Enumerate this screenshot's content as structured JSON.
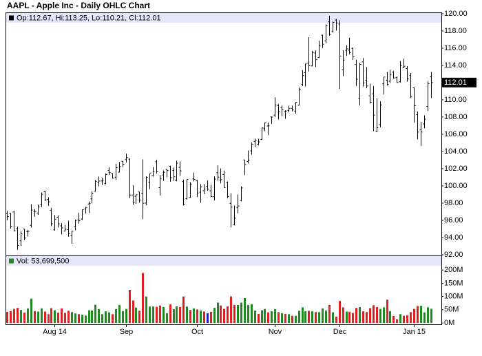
{
  "chart_data": {
    "type": "ohlc",
    "title": "AAPL - Apple Inc - Daily OHLC Chart",
    "legend": "Op:112.67, Hi:113.25, Lo:110.21, Cl:112.01",
    "color": "#000000",
    "categories": [
      null,
      null,
      null,
      null,
      null,
      null,
      null,
      null,
      null,
      null,
      null,
      null,
      null,
      null,
      "Aug 14",
      null,
      null,
      null,
      null,
      null,
      null,
      null,
      null,
      null,
      null,
      null,
      null,
      null,
      null,
      null,
      null,
      null,
      null,
      null,
      null,
      "Sep",
      null,
      null,
      null,
      null,
      null,
      null,
      null,
      null,
      null,
      null,
      null,
      null,
      null,
      null,
      null,
      null,
      null,
      null,
      null,
      null,
      "Oct",
      null,
      null,
      null,
      null,
      null,
      null,
      null,
      null,
      null,
      null,
      null,
      null,
      null,
      null,
      null,
      null,
      null,
      null,
      null,
      null,
      null,
      null,
      "Nov",
      null,
      null,
      null,
      null,
      null,
      null,
      null,
      null,
      null,
      null,
      null,
      null,
      null,
      null,
      null,
      null,
      null,
      null,
      "Dec",
      null,
      null,
      null,
      null,
      null,
      null,
      null,
      null,
      null,
      null,
      null,
      null,
      null,
      null,
      null,
      null,
      null,
      null,
      null,
      null,
      null,
      "Jan 15",
      null,
      null,
      null,
      null,
      null
    ],
    "open": [
      96.8,
      96.8,
      96.97,
      95.03,
      93.62,
      94.99,
      94.68,
      95.42,
      97.04,
      96.85,
      97.82,
      99.33,
      98.44,
      97.16,
      94.9,
      96.37,
      95.36,
      94.75,
      94.93,
      94.26,
      95.27,
      96.04,
      96.15,
      97.33,
      97.9,
      98.49,
      99.41,
      100.44,
      100.57,
      100.29,
      101.79,
      101.42,
      101.02,
      101.59,
      102.86,
      103.06,
      103.1,
      98.85,
      98.8,
      99.3,
      99.08,
      98.01,
      100.41,
      101.21,
      102.81,
      99.8,
      101.27,
      101.93,
      102.29,
      101.8,
      100.6,
      102.16,
      100.51,
      98.53,
      98.65,
      100.81,
      100.59,
      99.27,
      99.44,
      99.95,
      99.43,
      98.76,
      101.54,
      100.69,
      101.33,
      100.39,
      97.97,
      95.55,
      97.5,
      98.32,
      103.02,
      102.84,
      104.08,
      105.18,
      104.85,
      105.4,
      106.65,
      106.96,
      108.01,
      108.22,
      109.36,
      109.1,
      108.6,
      108.75,
      109.02,
      108.7,
      109.38,
      111.8,
      113.15,
      114.27,
      113.94,
      115.44,
      114.91,
      117.51,
      116.85,
      119.07,
      117.94,
      119.27,
      118.81,
      113.5,
      115.75,
      115.77,
      115.99,
      114.1,
      110.19,
      114.41,
      112.26,
      110.46,
      110.7,
      106.37,
      107.12,
      111.87,
      112.26,
      112.16,
      113.23,
      112.58,
      112.1,
      113.79,
      113.64,
      112.82,
      111.39,
      108.29,
      106.54,
      107.2,
      109.23,
      112.67
    ],
    "high": [
      97.1,
      96.85,
      97.1,
      95.28,
      94.74,
      95.0,
      94.89,
      97.88,
      97.32,
      97.84,
      99.24,
      99.44,
      98.7,
      97.45,
      96.62,
      96.58,
      95.68,
      95.48,
      95.95,
      94.82,
      96.08,
      96.88,
      97.24,
      97.57,
      98.19,
      99.37,
      100.68,
      101.09,
      100.94,
      101.47,
      102.17,
      101.5,
      102.57,
      102.78,
      102.9,
      103.74,
      103.2,
      100.09,
      98.97,
      99.31,
      103.08,
      101.11,
      101.44,
      102.19,
      103.05,
      101.26,
      101.8,
      101.94,
      102.35,
      102.14,
      102.94,
      102.85,
      100.71,
      100.75,
      100.44,
      101.54,
      100.69,
      100.22,
      100.21,
      100.65,
      100.12,
      101.11,
      102.38,
      102.03,
      101.78,
      100.52,
      99.15,
      97.72,
      99.0,
      99.96,
      103.02,
      104.11,
      105.05,
      105.49,
      105.48,
      106.74,
      107.37,
      107.35,
      108.04,
      110.3,
      109.49,
      109.3,
      108.79,
      109.32,
      109.33,
      109.75,
      111.43,
      113.45,
      114.19,
      117.28,
      115.69,
      115.74,
      116.86,
      117.57,
      118.77,
      119.75,
      119.1,
      119.4,
      119.25,
      115.75,
      116.35,
      117.2,
      116.08,
      114.65,
      114.3,
      114.85,
      113.8,
      111.87,
      111.6,
      110.16,
      109.84,
      112.65,
      113.24,
      113.49,
      113.33,
      112.71,
      114.52,
      114.77,
      113.92,
      113.13,
      111.44,
      108.65,
      107.43,
      108.2,
      112.15,
      113.25
    ],
    "low": [
      96.0,
      95.03,
      94.74,
      92.57,
      93.02,
      93.72,
      94.12,
      95.17,
      96.42,
      96.64,
      97.55,
      98.25,
      97.67,
      95.33,
      94.81,
      95.17,
      94.36,
      94.71,
      94.1,
      93.28,
      94.84,
      95.61,
      96.04,
      96.8,
      96.86,
      97.98,
      99.32,
      99.95,
      100.11,
      100.19,
      101.28,
      100.86,
      100.7,
      101.56,
      102.2,
      102.72,
      98.58,
      97.79,
      97.91,
      98.05,
      96.14,
      97.76,
      99.62,
      101.08,
      101.44,
      98.89,
      100.59,
      101.0,
      100.5,
      100.58,
      100.54,
      101.2,
      97.72,
      98.4,
      98.63,
      100.53,
      98.7,
      98.04,
      99.04,
      99.42,
      98.73,
      98.31,
      100.61,
      100.3,
      99.81,
      98.57,
      95.18,
      95.41,
      96.81,
      98.22,
      101.27,
      102.6,
      103.63,
      104.53,
      104.7,
      105.35,
      106.36,
      105.9,
      107.21,
      108.01,
      107.72,
      108.12,
      107.8,
      108.55,
      108.67,
      108.4,
      109.37,
      111.6,
      111.56,
      113.3,
      113.89,
      113.8,
      114.85,
      116.03,
      116.62,
      117.45,
      117.83,
      118.05,
      111.27,
      112.75,
      115.11,
      115.29,
      114.64,
      111.62,
      109.35,
      111.54,
      111.34,
      109.58,
      106.35,
      106.26,
      106.82,
      110.66,
      111.66,
      111.97,
      112.46,
      112.01,
      112.01,
      113.7,
      112.11,
      110.21,
      107.35,
      105.41,
      104.63,
      106.7,
      108.7,
      110.21
    ],
    "close": [
      96.45,
      95.32,
      94.78,
      93.09,
      94.43,
      93.94,
      94.72,
      97.19,
      97.03,
      97.67,
      99.02,
      98.38,
      98.15,
      95.6,
      96.13,
      95.59,
      95.12,
      94.96,
      94.48,
      94.74,
      95.99,
      95.97,
      97.24,
      97.5,
      97.98,
      99.16,
      100.53,
      100.57,
      100.58,
      101.32,
      101.54,
      100.89,
      102.13,
      102.25,
      102.5,
      103.3,
      98.94,
      98.12,
      98.97,
      98.36,
      97.99,
      101.0,
      101.43,
      101.66,
      101.63,
      100.86,
      101.58,
      101.79,
      100.96,
      101.06,
      102.64,
      101.75,
      97.87,
      100.75,
      100.11,
      100.75,
      99.18,
      99.9,
      99.62,
      99.62,
      98.75,
      100.8,
      101.02,
      100.73,
      99.81,
      98.75,
      97.54,
      96.26,
      97.67,
      99.76,
      102.47,
      102.99,
      104.83,
      105.22,
      105.11,
      106.74,
      107.34,
      106.98,
      108.0,
      109.4,
      108.6,
      108.86,
      108.7,
      109.01,
      108.83,
      109.7,
      111.25,
      112.82,
      114.18,
      113.99,
      115.47,
      114.67,
      116.31,
      116.47,
      118.62,
      117.6,
      119.0,
      118.93,
      115.07,
      114.63,
      115.93,
      115.49,
      115.0,
      112.4,
      114.12,
      111.95,
      111.62,
      109.73,
      108.23,
      106.75,
      109.41,
      112.65,
      111.78,
      112.94,
      112.54,
      112.01,
      113.99,
      113.91,
      112.52,
      110.38,
      109.33,
      106.25,
      106.26,
      107.75,
      111.89,
      112.01
    ],
    "ylim": [
      92,
      120
    ],
    "yticks": [
      {
        "value": 92,
        "label": "92.00"
      },
      {
        "value": 94,
        "label": "94.00"
      },
      {
        "value": 96,
        "label": "96.00"
      },
      {
        "value": 98,
        "label": "98.00"
      },
      {
        "value": 100,
        "label": "100.00"
      },
      {
        "value": 102,
        "label": "102.00"
      },
      {
        "value": 104,
        "label": "104.00"
      },
      {
        "value": 106,
        "label": "106.00"
      },
      {
        "value": 108,
        "label": "108.00"
      },
      {
        "value": 110,
        "label": "110.00"
      },
      {
        "value": 112,
        "label": "112.00"
      },
      {
        "value": 114,
        "label": "114.00"
      },
      {
        "value": 116,
        "label": "116.00"
      },
      {
        "value": 118,
        "label": "118.00"
      },
      {
        "value": 120,
        "label": "120.00"
      }
    ],
    "volume": {
      "type": "bar",
      "legend": "Vol: 53,699,500",
      "up_color": "#1f8a1f",
      "down_color": "#e02020",
      "flat_color": "#2020c0",
      "values": [
        42,
        45,
        53,
        57,
        49,
        39,
        55,
        92,
        45,
        43,
        55,
        43,
        33,
        56,
        48,
        39,
        55,
        38,
        46,
        41,
        36,
        33,
        31,
        28,
        48,
        47,
        69,
        52,
        33,
        44,
        40,
        33,
        52,
        68,
        45,
        53,
        125,
        85,
        58,
        46,
        189,
        100,
        62,
        62,
        61,
        66,
        60,
        37,
        70,
        52,
        63,
        60,
        100,
        62,
        49,
        55,
        51,
        47,
        43,
        37,
        42,
        57,
        77,
        66,
        53,
        63,
        100,
        68,
        68,
        77,
        94,
        68,
        71,
        47,
        34,
        48,
        53,
        40,
        44,
        52,
        41,
        37,
        34,
        33,
        27,
        27,
        46,
        59,
        44,
        46,
        44,
        41,
        41,
        55,
        47,
        68,
        40,
        24,
        83,
        59,
        43,
        42,
        38,
        57,
        60,
        44,
        41,
        56,
        67,
        60,
        53,
        59,
        88,
        45,
        26,
        14,
        33,
        27,
        29,
        41,
        53,
        64,
        65,
        40,
        59,
        53.6995
      ],
      "ylim": [
        0,
        250
      ],
      "yticks": [
        {
          "value": 0,
          "label": "0M"
        },
        {
          "value": 50,
          "label": "50M"
        },
        {
          "value": 100,
          "label": "100M"
        },
        {
          "value": 150,
          "label": "150M"
        },
        {
          "value": 200,
          "label": "200M"
        }
      ]
    }
  }
}
